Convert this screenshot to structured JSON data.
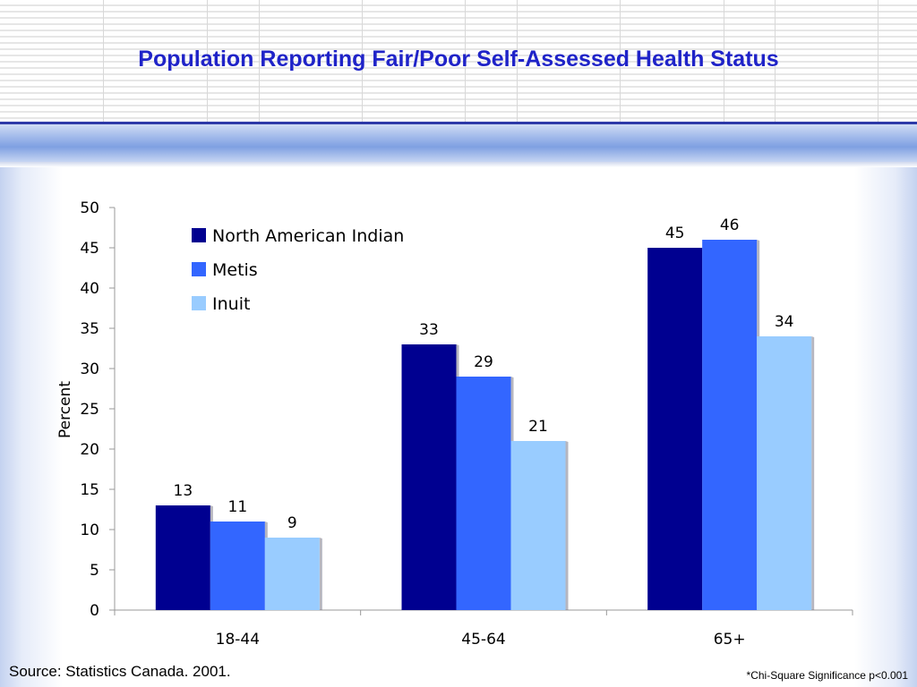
{
  "slide": {
    "title": "Population Reporting Fair/Poor Self-Assessed Health Status",
    "source": "Source: Statistics Canada. 2001.",
    "note": "*Chi-Square Significance p<0.001",
    "colors": {
      "title": "#1f23c8",
      "band_dark": "#2d3aa8",
      "band_blue": "#7fa0e2"
    }
  },
  "chart_data": {
    "type": "bar",
    "title": "",
    "xlabel": "",
    "ylabel": "Percent",
    "categories": [
      "18-44",
      "45-64",
      "65+"
    ],
    "series": [
      {
        "name": "North American Indian",
        "values": [
          13,
          33,
          45
        ],
        "color": "#000090"
      },
      {
        "name": "Metis",
        "values": [
          11,
          29,
          46
        ],
        "color": "#3366ff"
      },
      {
        "name": "Inuit",
        "values": [
          9,
          21,
          34
        ],
        "color": "#99ccff"
      }
    ],
    "ylim": [
      0,
      50
    ],
    "yticks": [
      0,
      5,
      10,
      15,
      20,
      25,
      30,
      35,
      40,
      45,
      50
    ],
    "grid": false,
    "legend": "top-left",
    "data_labels": true
  }
}
